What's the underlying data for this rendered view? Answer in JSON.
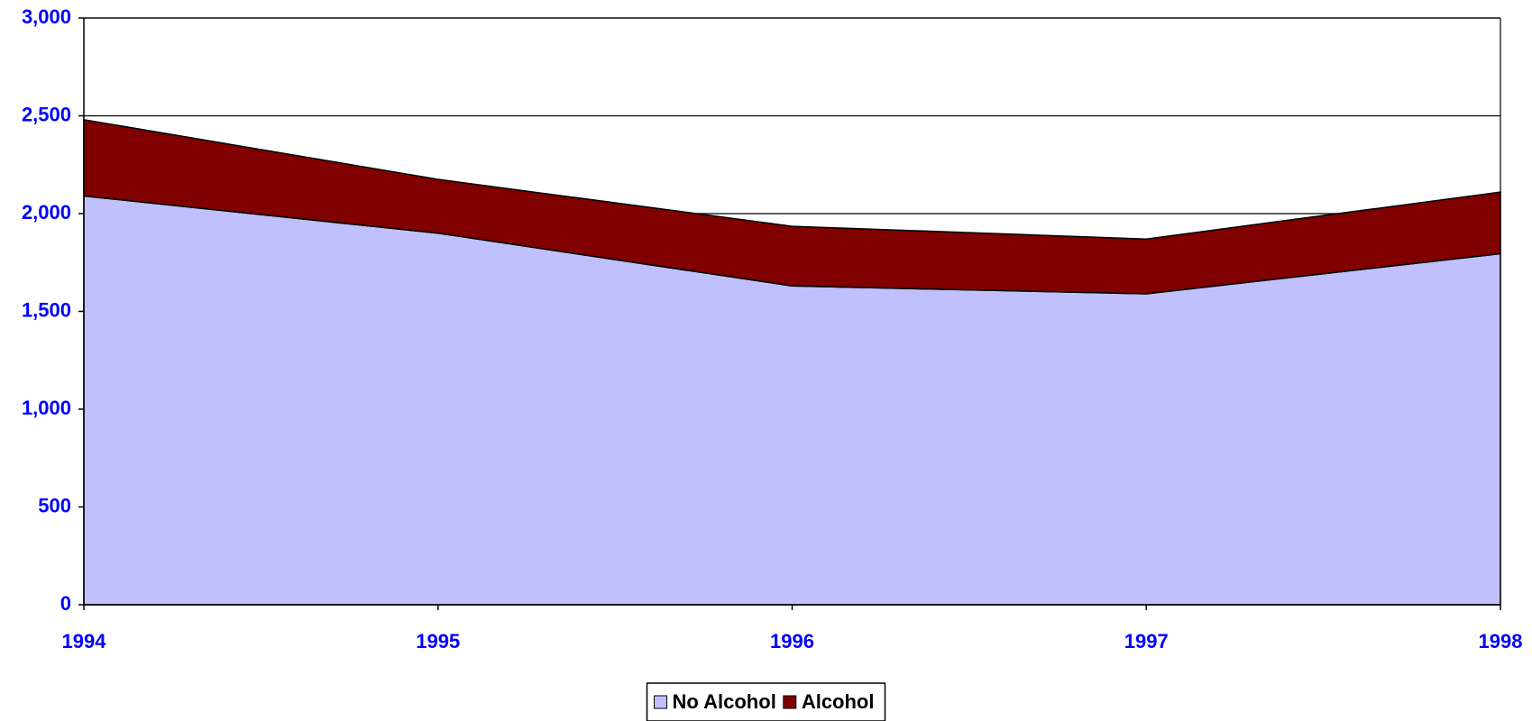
{
  "chart_data": {
    "type": "stacked_area",
    "x": [
      1994,
      1995,
      1996,
      1997,
      1998
    ],
    "xlim": [
      1994,
      1998
    ],
    "xticks": [
      1994,
      1995,
      1996,
      1997,
      1998
    ],
    "ylim": [
      0,
      3000
    ],
    "yticks": [
      0,
      500,
      {
        "value": 1000,
        "label": "1,000"
      },
      {
        "value": 1500,
        "label": "1,500"
      },
      {
        "value": 2000,
        "label": "2,000"
      },
      {
        "value": 2500,
        "label": "2,500"
      },
      {
        "value": 3000,
        "label": "3,000"
      }
    ],
    "grid": true,
    "legend": "bottom",
    "series": [
      {
        "name": "No Alcohol",
        "color": "#c0c0ff",
        "values": [
          2090,
          1900,
          1630,
          1590,
          1795
        ]
      },
      {
        "name": "Alcohol",
        "color": "#800000",
        "values": [
          390,
          275,
          305,
          280,
          315
        ]
      }
    ]
  }
}
